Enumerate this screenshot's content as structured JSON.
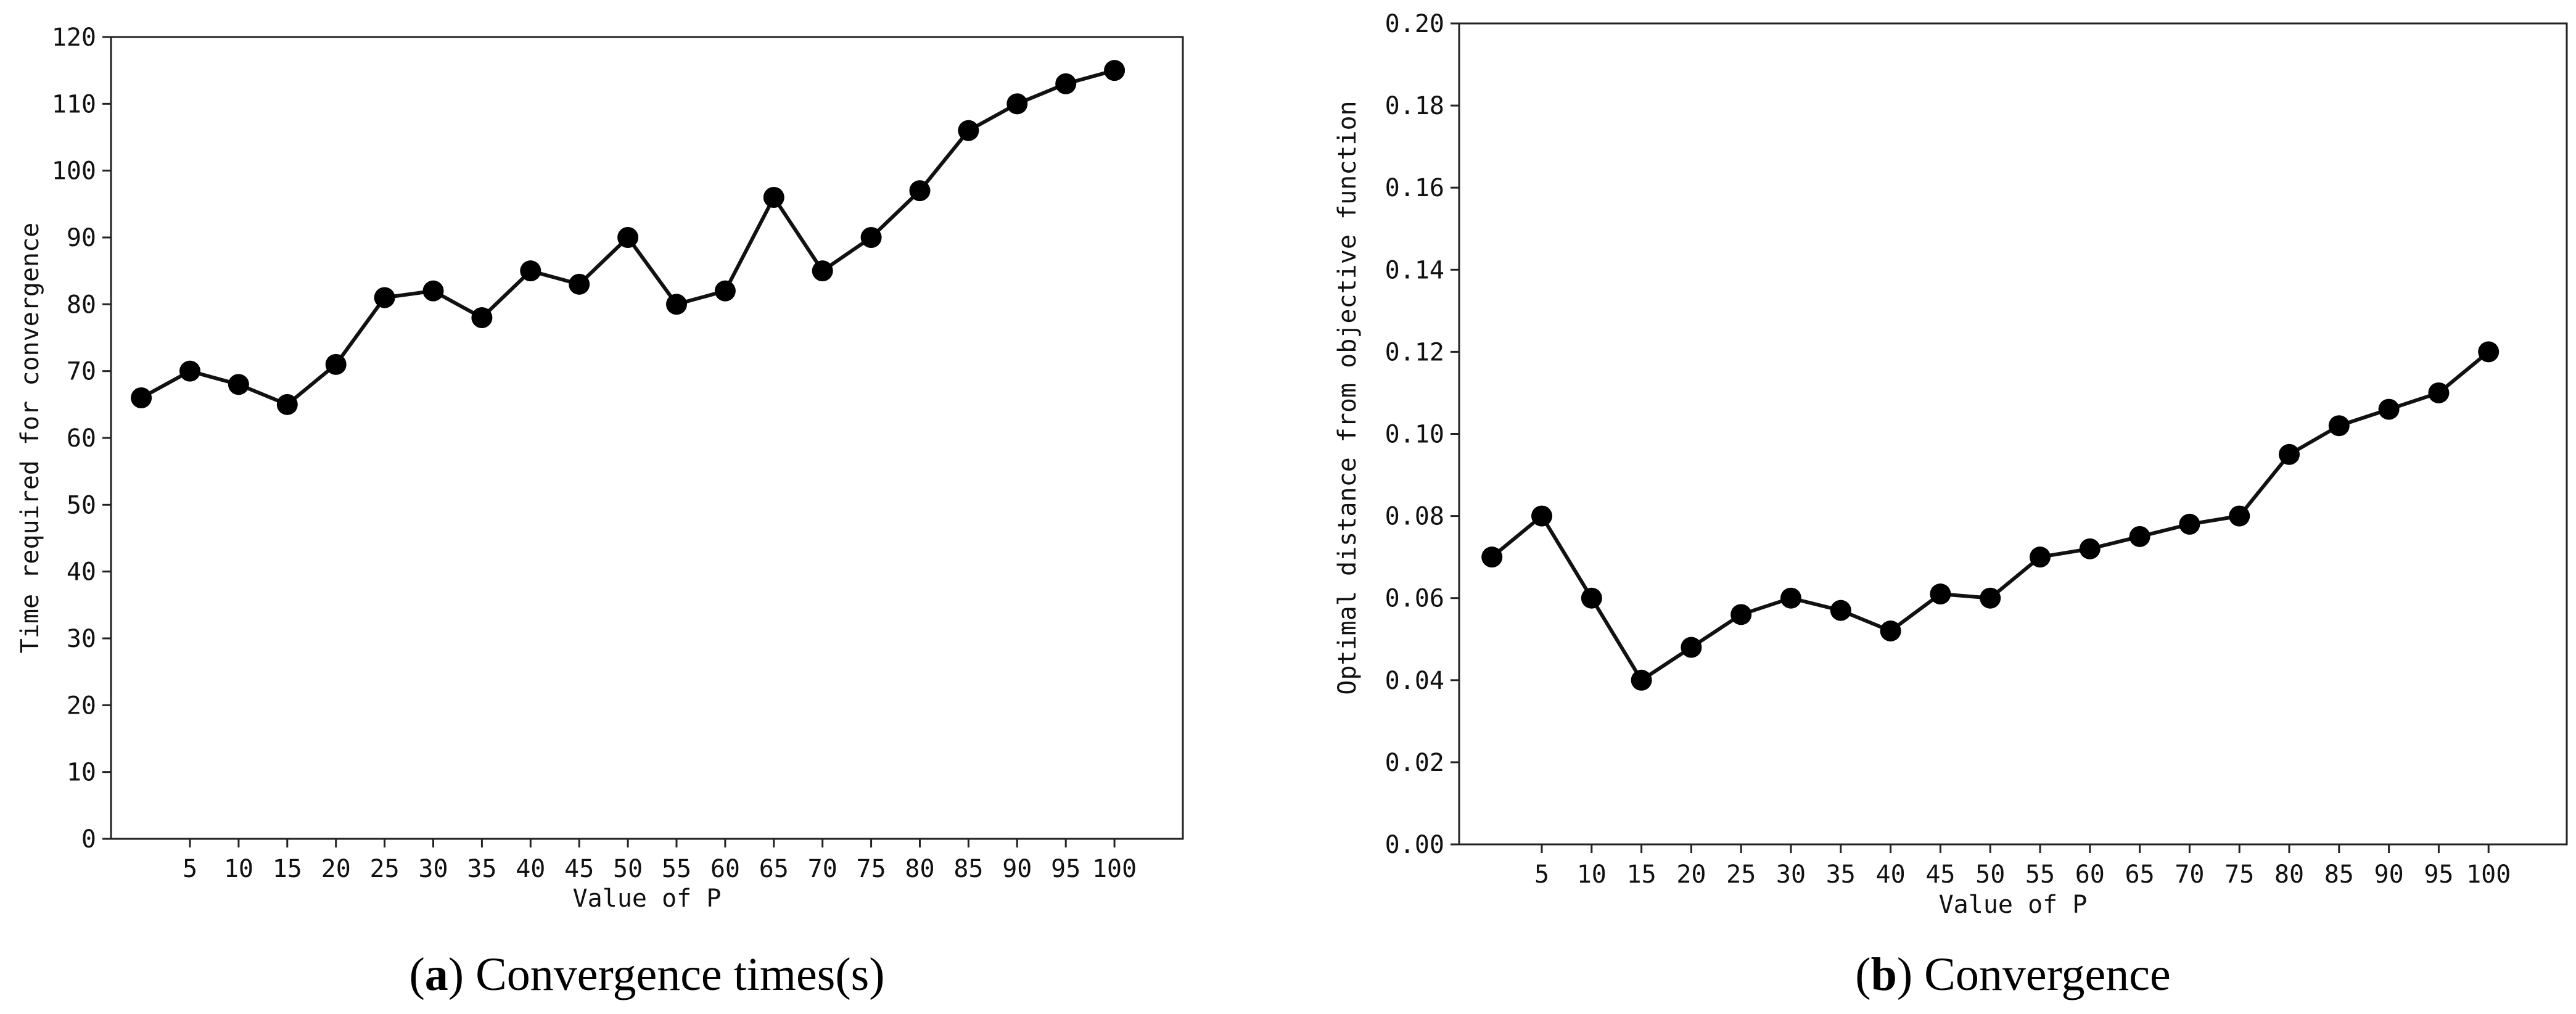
{
  "chart_data": [
    {
      "type": "line",
      "id": "a",
      "caption_letter": "a",
      "caption_text": "Convergence times(s)",
      "xlabel": "Value of P",
      "ylabel": "Time required for convergence",
      "x_ticks": [
        5,
        10,
        15,
        20,
        25,
        30,
        35,
        40,
        45,
        50,
        55,
        60,
        65,
        70,
        75,
        80,
        85,
        90,
        95,
        100
      ],
      "y_ticks": [
        "0",
        "10",
        "20",
        "30",
        "40",
        "50",
        "60",
        "70",
        "80",
        "90",
        "100",
        "110",
        "120"
      ],
      "ylim": [
        0,
        120
      ],
      "series": [
        {
          "name": "convergence time",
          "x": [
            0,
            5,
            10,
            15,
            20,
            25,
            30,
            35,
            40,
            45,
            50,
            55,
            60,
            65,
            70,
            75,
            80,
            85,
            90,
            95,
            100
          ],
          "values": [
            66,
            70,
            68,
            65,
            71,
            81,
            82,
            78,
            85,
            83,
            90,
            80,
            82,
            96,
            85,
            90,
            97,
            106,
            110,
            113,
            115
          ]
        }
      ]
    },
    {
      "type": "line",
      "id": "b",
      "caption_letter": "b",
      "caption_text": "Convergence",
      "xlabel": "Value of P",
      "ylabel": "Optimal distance from objective function",
      "x_ticks": [
        5,
        10,
        15,
        20,
        25,
        30,
        35,
        40,
        45,
        50,
        55,
        60,
        65,
        70,
        75,
        80,
        85,
        90,
        95,
        100
      ],
      "y_ticks": [
        "0.00",
        "0.02",
        "0.04",
        "0.06",
        "0.08",
        "0.10",
        "0.12",
        "0.14",
        "0.16",
        "0.18",
        "0.20"
      ],
      "ylim": [
        0,
        0.2
      ],
      "series": [
        {
          "name": "optimal distance",
          "x": [
            0,
            5,
            10,
            15,
            20,
            25,
            30,
            35,
            40,
            45,
            50,
            55,
            60,
            65,
            70,
            75,
            80,
            85,
            90,
            95,
            100
          ],
          "values": [
            0.07,
            0.08,
            0.06,
            0.04,
            0.048,
            0.056,
            0.06,
            0.057,
            0.052,
            0.061,
            0.06,
            0.07,
            0.072,
            0.075,
            0.078,
            0.08,
            0.095,
            0.102,
            0.106,
            0.11,
            0.12
          ]
        }
      ]
    }
  ]
}
